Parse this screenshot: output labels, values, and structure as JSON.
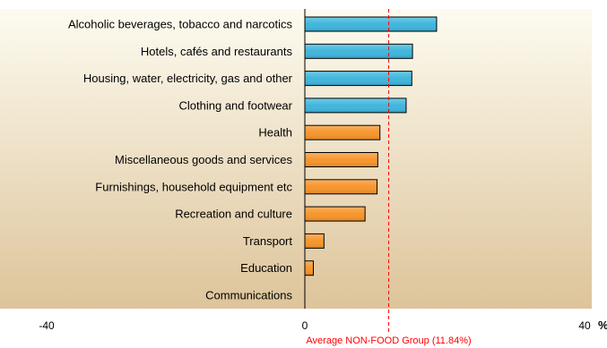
{
  "chart_data": {
    "type": "bar",
    "orientation": "horizontal",
    "categories": [
      "Alcoholic beverages, tobacco and narcotics",
      "Hotels, cafés and restaurants",
      "Housing, water, electricity, gas and other",
      "Clothing and footwear",
      "Health",
      "Miscellaneous goods and services",
      "Furnishings, household equipment etc",
      "Recreation and culture",
      "Transport",
      "Education",
      "Communications"
    ],
    "values": [
      18.6,
      15.2,
      15.1,
      14.3,
      10.6,
      10.3,
      10.2,
      8.5,
      2.7,
      1.2,
      0
    ],
    "bar_colors": [
      "#3fb6dc",
      "#3fb6dc",
      "#3fb6dc",
      "#3fb6dc",
      "#f7952c",
      "#f7952c",
      "#f7952c",
      "#f7952c",
      "#f7952c",
      "#f7952c",
      "#f7952c"
    ],
    "xlim": [
      -40,
      40
    ],
    "xticks": [
      "-40",
      "0",
      "40"
    ],
    "x_unit": "%",
    "reference_line": {
      "value": 11.84,
      "label": "Average  NON-FOOD Group (11.84%)",
      "color": "#ff0000",
      "style": "dashed"
    },
    "background_gradient": [
      "#fdfbf0",
      "#ddc49a"
    ],
    "grid": false
  }
}
